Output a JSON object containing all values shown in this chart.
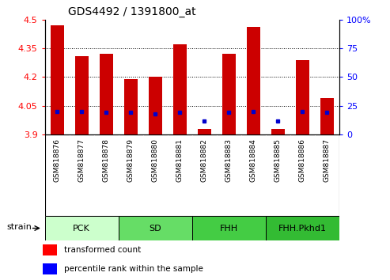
{
  "title": "GDS4492 / 1391800_at",
  "samples": [
    "GSM818876",
    "GSM818877",
    "GSM818878",
    "GSM818879",
    "GSM818880",
    "GSM818881",
    "GSM818882",
    "GSM818883",
    "GSM818884",
    "GSM818885",
    "GSM818886",
    "GSM818887"
  ],
  "transformed_counts": [
    4.47,
    4.31,
    4.32,
    4.19,
    4.2,
    4.37,
    3.93,
    4.32,
    4.46,
    3.93,
    4.29,
    4.09
  ],
  "percentile_ranks": [
    20,
    20,
    19,
    19,
    18,
    19,
    12,
    19,
    20,
    12,
    20,
    19
  ],
  "y_min": 3.9,
  "y_max": 4.5,
  "y_ticks": [
    3.9,
    4.05,
    4.2,
    4.35,
    4.5
  ],
  "right_y_ticks": [
    0,
    25,
    50,
    75,
    100
  ],
  "right_y_tick_labels": [
    "0",
    "25",
    "50",
    "75",
    "100%"
  ],
  "bar_color": "#cc0000",
  "dot_color": "#0000cc",
  "bar_width": 0.55,
  "groups": [
    {
      "label": "PCK",
      "start": 0,
      "end": 2,
      "color": "#ccffcc"
    },
    {
      "label": "SD",
      "start": 3,
      "end": 5,
      "color": "#66dd66"
    },
    {
      "label": "FHH",
      "start": 6,
      "end": 8,
      "color": "#44cc44"
    },
    {
      "label": "FHH.Pkhd1",
      "start": 9,
      "end": 11,
      "color": "#33bb33"
    }
  ],
  "legend_red_label": "transformed count",
  "legend_blue_label": "percentile rank within the sample"
}
